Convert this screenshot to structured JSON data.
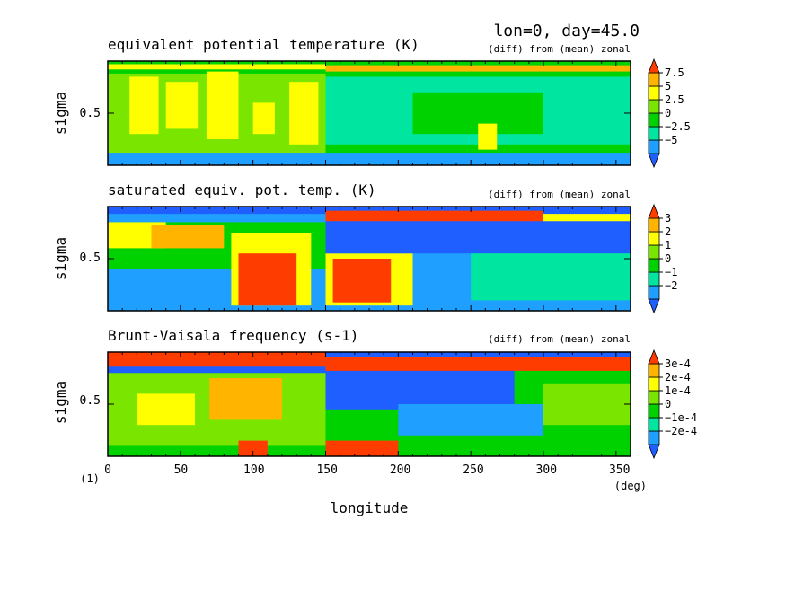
{
  "header": {
    "title": "lon=0, day=45.0"
  },
  "colors": {
    "levels": [
      "#1f5fff",
      "#1f9fff",
      "#00e6a0",
      "#00d200",
      "#7ae600",
      "#ffff00",
      "#ffb400",
      "#ff3c00"
    ],
    "frame": "#000000"
  },
  "chart_data": [
    {
      "type": "heatmap",
      "title": "equivalent potential temperature (K)",
      "subtitle": "(diff) from (mean) zonal",
      "ylabel": "sigma",
      "yticks": [
        "0.5"
      ],
      "xlim": [
        0,
        360
      ],
      "ylim": [
        0,
        1
      ],
      "colorbar": {
        "labels": [
          "7.5",
          "5",
          "2.5",
          "0",
          "−2.5",
          "−5"
        ]
      },
      "bands": [
        {
          "x0": 0,
          "x1": 360,
          "y0": 0.0,
          "y1": 1.0,
          "level": 3
        },
        {
          "x0": 0,
          "x1": 150,
          "y0": 0.1,
          "y1": 0.88,
          "level": 4
        },
        {
          "x0": 15,
          "x1": 35,
          "y0": 0.3,
          "y1": 0.85,
          "level": 5
        },
        {
          "x0": 40,
          "x1": 62,
          "y0": 0.35,
          "y1": 0.8,
          "level": 5
        },
        {
          "x0": 68,
          "x1": 90,
          "y0": 0.25,
          "y1": 0.9,
          "level": 5
        },
        {
          "x0": 100,
          "x1": 115,
          "y0": 0.3,
          "y1": 0.6,
          "level": 5
        },
        {
          "x0": 125,
          "x1": 145,
          "y0": 0.2,
          "y1": 0.8,
          "level": 5
        },
        {
          "x0": 150,
          "x1": 360,
          "y0": 0.2,
          "y1": 0.85,
          "level": 2
        },
        {
          "x0": 210,
          "x1": 300,
          "y0": 0.3,
          "y1": 0.7,
          "level": 3
        },
        {
          "x0": 255,
          "x1": 268,
          "y0": 0.15,
          "y1": 0.4,
          "level": 5
        },
        {
          "x0": 0,
          "x1": 360,
          "y0": 0.0,
          "y1": 0.12,
          "level": 1
        },
        {
          "x0": 150,
          "x1": 360,
          "y0": 0.9,
          "y1": 0.96,
          "level": 6
        },
        {
          "x0": 0,
          "x1": 150,
          "y0": 0.92,
          "y1": 0.97,
          "level": 5
        }
      ]
    },
    {
      "type": "heatmap",
      "title": "saturated equiv. pot. temp. (K)",
      "subtitle": "(diff) from (mean) zonal",
      "ylabel": "sigma",
      "yticks": [
        "0.5"
      ],
      "xlim": [
        0,
        360
      ],
      "ylim": [
        0,
        1
      ],
      "colorbar": {
        "labels": [
          "3",
          "2",
          "1",
          "0",
          "−1",
          "−2"
        ]
      },
      "bands": [
        {
          "x0": 0,
          "x1": 360,
          "y0": 0.0,
          "y1": 1.0,
          "level": 1
        },
        {
          "x0": 0,
          "x1": 150,
          "y0": 0.4,
          "y1": 0.85,
          "level": 3
        },
        {
          "x0": 0,
          "x1": 40,
          "y0": 0.6,
          "y1": 0.85,
          "level": 5
        },
        {
          "x0": 30,
          "x1": 80,
          "y0": 0.6,
          "y1": 0.82,
          "level": 6
        },
        {
          "x0": 85,
          "x1": 140,
          "y0": 0.05,
          "y1": 0.75,
          "level": 5
        },
        {
          "x0": 90,
          "x1": 130,
          "y0": 0.05,
          "y1": 0.55,
          "level": 7
        },
        {
          "x0": 150,
          "x1": 210,
          "y0": 0.05,
          "y1": 0.55,
          "level": 5
        },
        {
          "x0": 155,
          "x1": 195,
          "y0": 0.08,
          "y1": 0.5,
          "level": 7
        },
        {
          "x0": 150,
          "x1": 360,
          "y0": 0.55,
          "y1": 0.88,
          "level": 0
        },
        {
          "x0": 250,
          "x1": 360,
          "y0": 0.1,
          "y1": 0.55,
          "level": 2
        },
        {
          "x0": 0,
          "x1": 360,
          "y0": 0.93,
          "y1": 1.0,
          "level": 0
        },
        {
          "x0": 150,
          "x1": 300,
          "y0": 0.86,
          "y1": 0.96,
          "level": 7
        },
        {
          "x0": 300,
          "x1": 360,
          "y0": 0.86,
          "y1": 0.93,
          "level": 5
        }
      ]
    },
    {
      "type": "heatmap",
      "title": "Brunt-Vaisala frequency (s-1)",
      "subtitle": "(diff) from (mean) zonal",
      "ylabel": "sigma",
      "yticks": [
        "0.5"
      ],
      "xlim": [
        0,
        360
      ],
      "ylim": [
        0,
        1
      ],
      "colorbar": {
        "labels": [
          "3e-4",
          "2e-4",
          "1e-4",
          "0",
          "−1e-4",
          "−2e-4"
        ]
      },
      "bands": [
        {
          "x0": 0,
          "x1": 360,
          "y0": 0.0,
          "y1": 1.0,
          "level": 3
        },
        {
          "x0": 0,
          "x1": 150,
          "y0": 0.1,
          "y1": 0.8,
          "level": 4
        },
        {
          "x0": 20,
          "x1": 60,
          "y0": 0.3,
          "y1": 0.6,
          "level": 5
        },
        {
          "x0": 70,
          "x1": 120,
          "y0": 0.35,
          "y1": 0.75,
          "level": 6
        },
        {
          "x0": 150,
          "x1": 280,
          "y0": 0.45,
          "y1": 0.85,
          "level": 0
        },
        {
          "x0": 200,
          "x1": 300,
          "y0": 0.2,
          "y1": 0.5,
          "level": 1
        },
        {
          "x0": 300,
          "x1": 360,
          "y0": 0.3,
          "y1": 0.7,
          "level": 4
        },
        {
          "x0": 150,
          "x1": 200,
          "y0": 0.0,
          "y1": 0.15,
          "level": 7
        },
        {
          "x0": 90,
          "x1": 110,
          "y0": 0.0,
          "y1": 0.15,
          "level": 7
        },
        {
          "x0": 0,
          "x1": 150,
          "y0": 0.85,
          "y1": 1.0,
          "level": 7
        },
        {
          "x0": 0,
          "x1": 150,
          "y0": 0.8,
          "y1": 0.86,
          "level": 0
        },
        {
          "x0": 150,
          "x1": 360,
          "y0": 0.82,
          "y1": 0.95,
          "level": 7
        },
        {
          "x0": 150,
          "x1": 360,
          "y0": 0.95,
          "y1": 1.0,
          "level": 0
        }
      ]
    }
  ],
  "xaxis": {
    "tick_labels": [
      "0",
      "50",
      "100",
      "150",
      "200",
      "250",
      "300",
      "350"
    ],
    "tick_values": [
      0,
      50,
      100,
      150,
      200,
      250,
      300,
      350
    ],
    "label": "longitude",
    "unit": "(deg)",
    "corner": "(1)"
  }
}
